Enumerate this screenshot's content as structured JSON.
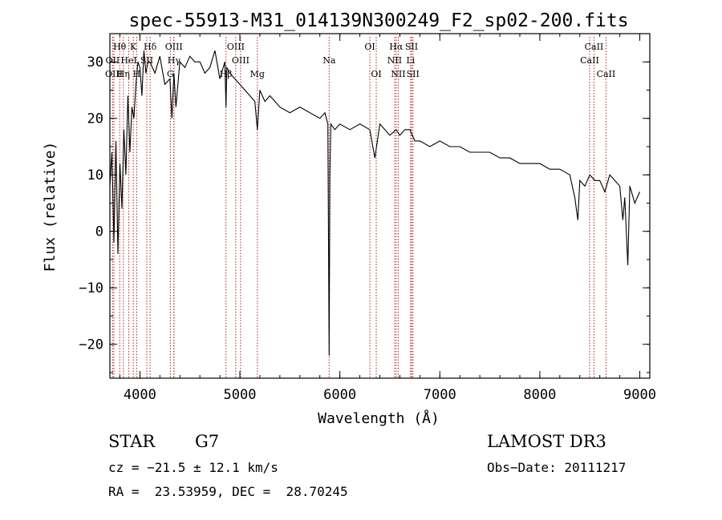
{
  "chart_data": {
    "type": "line",
    "title": "spec-55913-M31_014139N300249_F2_sp02-200.fits",
    "xlabel": "Wavelength (Å)",
    "ylabel": "Flux (relative)",
    "xlim": [
      3700,
      9100
    ],
    "ylim": [
      -26,
      35
    ],
    "x_ticks": [
      4000,
      5000,
      6000,
      7000,
      8000,
      9000
    ],
    "y_ticks": [
      -20,
      -10,
      0,
      10,
      20,
      30
    ],
    "grid": false,
    "series": [
      {
        "name": "spectrum",
        "x": [
          3700,
          3720,
          3740,
          3760,
          3780,
          3800,
          3820,
          3840,
          3860,
          3880,
          3900,
          3920,
          3940,
          3960,
          3980,
          4000,
          4020,
          4040,
          4060,
          4080,
          4100,
          4150,
          4200,
          4250,
          4300,
          4320,
          4340,
          4360,
          4400,
          4450,
          4500,
          4550,
          4600,
          4650,
          4700,
          4750,
          4800,
          4850,
          4861,
          4870,
          4900,
          4950,
          5000,
          5050,
          5100,
          5150,
          5175,
          5200,
          5250,
          5300,
          5400,
          5500,
          5600,
          5700,
          5800,
          5850,
          5880,
          5893,
          5900,
          5910,
          5950,
          6000,
          6100,
          6200,
          6300,
          6350,
          6400,
          6450,
          6500,
          6563,
          6600,
          6650,
          6700,
          6750,
          6800,
          6900,
          7000,
          7100,
          7200,
          7300,
          7400,
          7500,
          7600,
          7700,
          7800,
          7900,
          8000,
          8100,
          8200,
          8300,
          8350,
          8380,
          8400,
          8450,
          8500,
          8550,
          8600,
          8650,
          8700,
          8750,
          8800,
          8830,
          8850,
          8880,
          8900,
          8950,
          9000
        ],
        "y": [
          8,
          14,
          -2,
          16,
          -4,
          12,
          4,
          18,
          10,
          24,
          14,
          22,
          20,
          26,
          30,
          29,
          24,
          32,
          28,
          30,
          30,
          28,
          31,
          26,
          27,
          20,
          28,
          22,
          30,
          29,
          31,
          30,
          30,
          28,
          29,
          32,
          27,
          30,
          22,
          29,
          28,
          27,
          26,
          25,
          24,
          23,
          18,
          25,
          23,
          24,
          22,
          21,
          22,
          21,
          20,
          21,
          19,
          -22,
          10,
          19,
          18,
          19,
          18,
          19,
          18,
          13,
          19,
          18,
          17,
          18,
          17,
          18,
          18,
          16,
          16,
          15,
          16,
          15,
          15,
          14,
          14,
          14,
          13,
          13,
          12,
          12,
          12,
          11,
          11,
          10,
          6,
          2,
          9,
          8,
          10,
          9,
          9,
          7,
          10,
          9,
          8,
          2,
          6,
          -6,
          8,
          5,
          7
        ]
      }
    ],
    "lines": [
      {
        "label": "Hθ",
        "wavelength": 3798,
        "row": 1
      },
      {
        "label": "OII",
        "wavelength": 3727,
        "row": 2
      },
      {
        "label": "OIII",
        "wavelength": 3740,
        "row": 3
      },
      {
        "label": "Hη",
        "wavelength": 3835,
        "row": 3
      },
      {
        "label": "HeI",
        "wavelength": 3889,
        "row": 2
      },
      {
        "label": "K",
        "wavelength": 3934,
        "row": 1
      },
      {
        "label": "H",
        "wavelength": 3968,
        "row": 3
      },
      {
        "label": "SII",
        "wavelength": 4069,
        "row": 2
      },
      {
        "label": "Hδ",
        "wavelength": 4102,
        "row": 1
      },
      {
        "label": "OIII",
        "wavelength": 4340,
        "row": 1
      },
      {
        "label": "Hγ",
        "wavelength": 4341,
        "row": 2
      },
      {
        "label": "G",
        "wavelength": 4305,
        "row": 3
      },
      {
        "label": "Hβ",
        "wavelength": 4861,
        "row": 3
      },
      {
        "label": "OIII",
        "wavelength": 4959,
        "row": 1
      },
      {
        "label": "OIII",
        "wavelength": 5007,
        "row": 2
      },
      {
        "label": "Mg",
        "wavelength": 5175,
        "row": 3
      },
      {
        "label": "Na",
        "wavelength": 5893,
        "row": 2
      },
      {
        "label": "OI",
        "wavelength": 6300,
        "row": 1
      },
      {
        "label": "OI",
        "wavelength": 6364,
        "row": 3
      },
      {
        "label": "Hα",
        "wavelength": 6563,
        "row": 1
      },
      {
        "label": "NII",
        "wavelength": 6548,
        "row": 2
      },
      {
        "label": "NII",
        "wavelength": 6584,
        "row": 3
      },
      {
        "label": "SII",
        "wavelength": 6717,
        "row": 1
      },
      {
        "label": "Li",
        "wavelength": 6708,
        "row": 2
      },
      {
        "label": "SII",
        "wavelength": 6731,
        "row": 3
      },
      {
        "label": "CaII",
        "wavelength": 8542,
        "row": 1
      },
      {
        "label": "CaII",
        "wavelength": 8498,
        "row": 2
      },
      {
        "label": "CaII",
        "wavelength": 8662,
        "row": 3
      }
    ]
  },
  "info": {
    "class": "STAR",
    "subclass": "G7",
    "survey": "LAMOST DR3",
    "cz": "cz = −21.5 ± 12.1 km/s",
    "obs_date": "Obs−Date: 20111217",
    "coords": "RA =  23.53959, DEC =  28.70245"
  },
  "colors": {
    "line_marker": "#b22222",
    "spectrum": "#000000",
    "axes": "#000000"
  }
}
